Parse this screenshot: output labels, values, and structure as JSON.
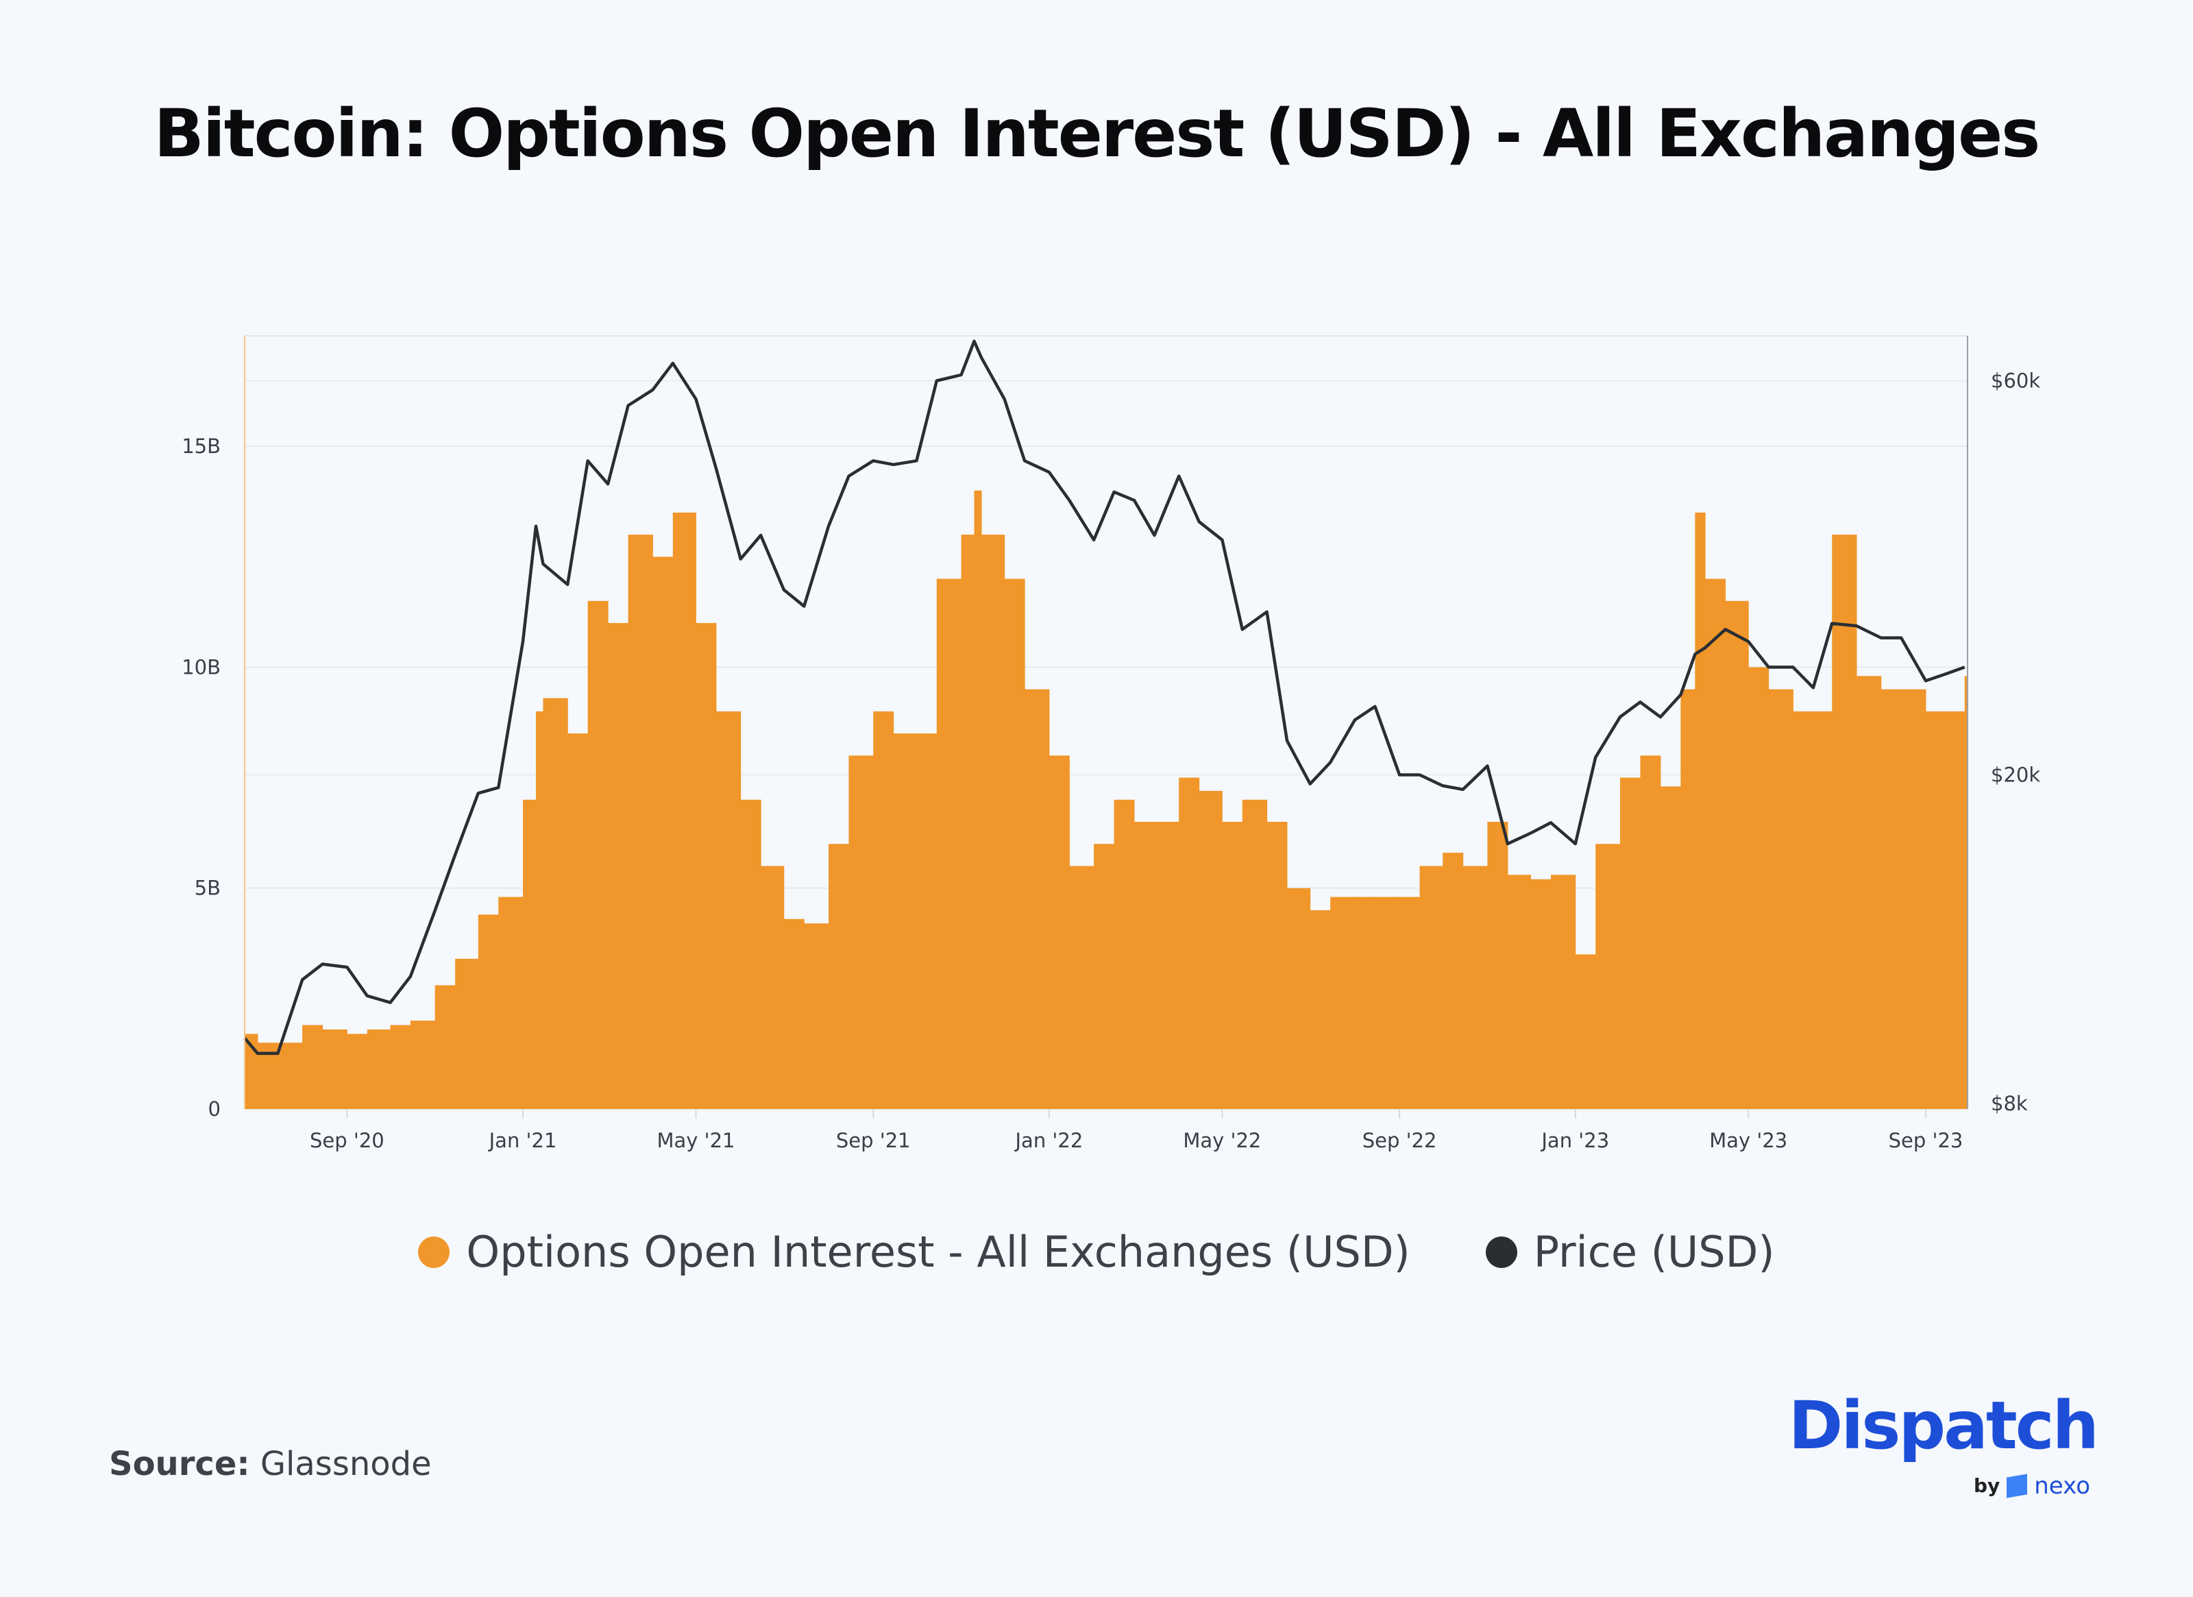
{
  "title": "Bitcoin: Options Open Interest (USD) - All Exchanges",
  "source": {
    "label": "Source:",
    "value": "Glassnode"
  },
  "logo": {
    "text": "Dispatch",
    "by": "by",
    "partner": "nexo"
  },
  "colors": {
    "oi": "#f0962a",
    "price": "#2a2e33",
    "brand": "#1d4ed8",
    "background": "#f5f8fc"
  },
  "chart_data": {
    "type": "bar+line",
    "title": "Bitcoin: Options Open Interest (USD) - All Exchanges",
    "x_range": [
      "2020-06-22",
      "2023-09-30"
    ],
    "x_ticks": [
      {
        "date": "2020-09-01",
        "label": "Sep '20"
      },
      {
        "date": "2021-01-01",
        "label": "Jan '21"
      },
      {
        "date": "2021-05-01",
        "label": "May '21"
      },
      {
        "date": "2021-09-01",
        "label": "Sep '21"
      },
      {
        "date": "2022-01-01",
        "label": "Jan '22"
      },
      {
        "date": "2022-05-01",
        "label": "May '22"
      },
      {
        "date": "2022-09-01",
        "label": "Sep '22"
      },
      {
        "date": "2023-01-01",
        "label": "Jan '23"
      },
      {
        "date": "2023-05-01",
        "label": "May '23"
      },
      {
        "date": "2023-09-01",
        "label": "Sep '23"
      }
    ],
    "y_left": {
      "unit": "USD billions",
      "range": [
        0,
        17.5
      ],
      "ticks": [
        0,
        5,
        10,
        15
      ],
      "tick_labels": [
        "0",
        "5B",
        "10B",
        "15B"
      ]
    },
    "y_right": {
      "unit": "USD thousands",
      "scale": "log",
      "range": [
        8,
        68
      ],
      "ticks": [
        8,
        20,
        60
      ],
      "tick_labels": [
        "$8k",
        "$20k",
        "$60k"
      ]
    },
    "grid": true,
    "legend_position": "bottom",
    "x": [
      "2020-06-22",
      "2020-07-01",
      "2020-07-15",
      "2020-08-01",
      "2020-08-15",
      "2020-09-01",
      "2020-09-15",
      "2020-10-01",
      "2020-10-15",
      "2020-11-01",
      "2020-11-15",
      "2020-12-01",
      "2020-12-15",
      "2021-01-01",
      "2021-01-10",
      "2021-01-15",
      "2021-02-01",
      "2021-02-15",
      "2021-03-01",
      "2021-03-15",
      "2021-04-01",
      "2021-04-15",
      "2021-05-01",
      "2021-05-15",
      "2021-06-01",
      "2021-06-15",
      "2021-07-01",
      "2021-07-15",
      "2021-08-01",
      "2021-08-15",
      "2021-09-01",
      "2021-09-15",
      "2021-10-01",
      "2021-10-15",
      "2021-11-01",
      "2021-11-10",
      "2021-11-15",
      "2021-12-01",
      "2021-12-15",
      "2022-01-01",
      "2022-01-15",
      "2022-02-01",
      "2022-02-15",
      "2022-03-01",
      "2022-03-15",
      "2022-04-01",
      "2022-04-15",
      "2022-05-01",
      "2022-05-15",
      "2022-06-01",
      "2022-06-15",
      "2022-07-01",
      "2022-07-15",
      "2022-08-01",
      "2022-08-15",
      "2022-09-01",
      "2022-09-15",
      "2022-10-01",
      "2022-10-15",
      "2022-11-01",
      "2022-11-15",
      "2022-12-01",
      "2022-12-15",
      "2023-01-01",
      "2023-01-15",
      "2023-02-01",
      "2023-02-15",
      "2023-03-01",
      "2023-03-15",
      "2023-03-25",
      "2023-04-01",
      "2023-04-15",
      "2023-05-01",
      "2023-05-15",
      "2023-06-01",
      "2023-06-15",
      "2023-06-28",
      "2023-07-15",
      "2023-08-01",
      "2023-08-15",
      "2023-09-01",
      "2023-09-15",
      "2023-09-28"
    ],
    "series": [
      {
        "name": "Options Open Interest - All Exchanges (USD)",
        "axis": "left",
        "type": "bar",
        "color": "#f0962a",
        "values": [
          1.7,
          1.5,
          1.5,
          1.9,
          1.8,
          1.7,
          1.8,
          1.9,
          2.0,
          2.8,
          3.4,
          4.4,
          4.8,
          7.0,
          9.0,
          9.3,
          8.5,
          11.5,
          11.0,
          13.0,
          12.5,
          13.5,
          11.0,
          9.0,
          7.0,
          5.5,
          4.3,
          4.2,
          6.0,
          8.0,
          9.0,
          8.5,
          8.5,
          12.0,
          13.0,
          14.0,
          13.0,
          12.0,
          9.5,
          8.0,
          5.5,
          6.0,
          7.0,
          6.5,
          6.5,
          7.5,
          7.2,
          6.5,
          7.0,
          6.5,
          5.0,
          4.5,
          4.8,
          4.8,
          4.8,
          4.8,
          5.5,
          5.8,
          5.5,
          6.5,
          5.3,
          5.2,
          5.3,
          3.5,
          6.0,
          7.5,
          8.0,
          7.3,
          9.5,
          13.5,
          12.0,
          11.5,
          10.0,
          9.5,
          9.0,
          9.0,
          13.0,
          9.8,
          9.5,
          9.5,
          9.0,
          9.0,
          9.8
        ]
      },
      {
        "name": "Price (USD)",
        "axis": "right",
        "type": "line",
        "color": "#2a2e33",
        "values": [
          9.6,
          9.2,
          9.2,
          11.3,
          11.8,
          11.7,
          10.8,
          10.6,
          11.4,
          13.7,
          16.0,
          19.0,
          19.3,
          29.0,
          40.0,
          36.0,
          34.0,
          48.0,
          45.0,
          56.0,
          58.5,
          63.0,
          57.0,
          47.0,
          36.5,
          39.0,
          33.5,
          32.0,
          40.0,
          46.0,
          48.0,
          47.5,
          48.0,
          60.0,
          61.0,
          67.0,
          64.0,
          57.0,
          48.0,
          46.5,
          43.0,
          38.5,
          44.0,
          43.0,
          39.0,
          46.0,
          40.5,
          38.5,
          30.0,
          31.5,
          22.0,
          19.5,
          20.7,
          23.3,
          24.2,
          20.0,
          20.0,
          19.4,
          19.2,
          20.5,
          16.5,
          17.0,
          17.5,
          16.5,
          21.0,
          23.5,
          24.5,
          23.5,
          25.0,
          28.0,
          28.5,
          30.0,
          29.0,
          27.0,
          27.0,
          25.5,
          30.5,
          30.3,
          29.3,
          29.3,
          26.0,
          26.5,
          27.0
        ]
      }
    ]
  }
}
